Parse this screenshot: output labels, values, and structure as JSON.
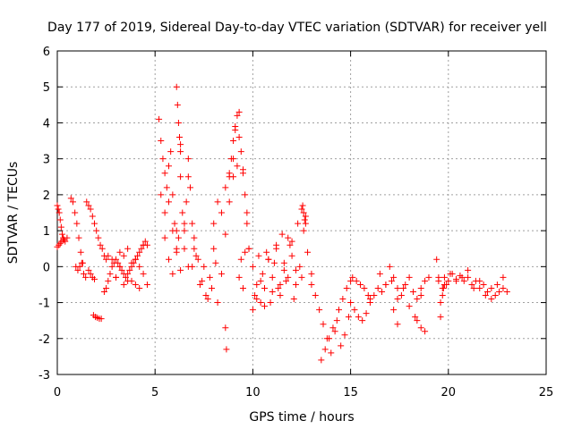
{
  "chart_data": {
    "type": "scatter",
    "title": "Day 177 of 2019, Sidereal Day-to-day VTEC variation (SDTVAR) for receiver yell",
    "xlabel": "GPS time / hours",
    "ylabel": "SDTVAR / TECUs",
    "xlim": [
      0,
      25
    ],
    "ylim": [
      -3,
      6
    ],
    "xticks": [
      "0",
      "5",
      "10",
      "15",
      "20",
      "25"
    ],
    "yticks": [
      "-3",
      "-2",
      "-1",
      "0",
      "1",
      "2",
      "3",
      "4",
      "5",
      "6"
    ],
    "grid": true,
    "marker": "+",
    "color": "#ff0000",
    "series": [
      {
        "name": "SDTVAR",
        "x": [
          0.0,
          0.05,
          0.1,
          0.15,
          0.2,
          0.25,
          0.3,
          0.35,
          0.4,
          0.5,
          0.0,
          0.08,
          0.15,
          0.22,
          0.3,
          0.7,
          0.8,
          0.9,
          1.0,
          1.1,
          1.2,
          1.3,
          0.95,
          1.05,
          1.15,
          1.25,
          1.35,
          1.45,
          1.5,
          1.6,
          1.7,
          1.8,
          1.9,
          2.0,
          2.1,
          2.2,
          2.3,
          2.4,
          2.5,
          1.6,
          1.7,
          1.8,
          1.9,
          1.85,
          1.95,
          2.05,
          2.15,
          2.25,
          2.4,
          2.5,
          2.6,
          2.7,
          2.8,
          2.9,
          3.0,
          3.1,
          3.2,
          3.3,
          3.4,
          3.5,
          3.6,
          3.7,
          3.8,
          3.9,
          4.0,
          4.1,
          4.2,
          4.3,
          4.4,
          4.5,
          4.6,
          2.6,
          2.8,
          3.0,
          3.2,
          3.4,
          3.6,
          3.8,
          4.0,
          4.2,
          4.4,
          3.0,
          3.2,
          3.4,
          3.6,
          3.8,
          4.0,
          4.2,
          4.4,
          4.6,
          5.2,
          5.3,
          5.4,
          5.5,
          5.6,
          5.7,
          5.8,
          5.9,
          6.0,
          6.1,
          6.2,
          6.3,
          6.4,
          6.5,
          6.6,
          6.7,
          6.8,
          6.9,
          7.0,
          5.3,
          5.5,
          5.7,
          5.9,
          6.1,
          6.3,
          6.5,
          6.7,
          6.9,
          5.5,
          5.7,
          5.9,
          6.1,
          6.3,
          6.5,
          6.7,
          6.1,
          6.15,
          6.2,
          6.25,
          6.3,
          7.0,
          7.2,
          7.4,
          7.6,
          7.8,
          8.0,
          8.2,
          8.4,
          8.6,
          8.8,
          9.0,
          7.1,
          7.3,
          7.5,
          7.7,
          7.9,
          8.1,
          8.0,
          8.2,
          8.4,
          8.6,
          8.8,
          9.0,
          9.2,
          8.8,
          8.9,
          9.0,
          9.1,
          9.2,
          9.3,
          9.4,
          9.5,
          9.6,
          9.7,
          9.8,
          9.1,
          9.3,
          9.5,
          9.7,
          9.3,
          9.4,
          9.5,
          9.6,
          8.6,
          8.65,
          9.8,
          10.0,
          10.2,
          10.4,
          10.6,
          10.8,
          11.0,
          11.2,
          11.4,
          11.6,
          11.8,
          12.0,
          12.2,
          12.4,
          12.6,
          12.8,
          13.0,
          10.1,
          10.3,
          10.5,
          10.7,
          10.9,
          11.1,
          11.3,
          11.5,
          11.7,
          11.9,
          12.1,
          12.3,
          12.5,
          12.7,
          10.0,
          10.2,
          10.4,
          10.6,
          10.8,
          11.0,
          11.2,
          11.4,
          11.6,
          11.8,
          12.0,
          12.2,
          12.5,
          12.55,
          12.6,
          12.65,
          12.7,
          13.0,
          13.2,
          13.4,
          13.6,
          13.8,
          14.0,
          14.2,
          14.4,
          14.6,
          14.8,
          15.0,
          13.5,
          13.7,
          13.9,
          14.1,
          14.3,
          14.5,
          14.7,
          14.9,
          15.0,
          15.2,
          15.4,
          15.6,
          15.8,
          16.0,
          15.1,
          15.3,
          15.5,
          15.7,
          15.9,
          16.0,
          16.2,
          16.4,
          16.6,
          16.8,
          17.0,
          17.2,
          17.4,
          17.6,
          17.8,
          18.0,
          18.2,
          18.4,
          18.6,
          18.8,
          19.0,
          16.5,
          16.8,
          17.1,
          17.4,
          17.7,
          18.0,
          18.3,
          18.6,
          17.2,
          17.4,
          18.4,
          18.6,
          18.8,
          19.4,
          19.5,
          19.6,
          19.7,
          19.8,
          19.9,
          20.0,
          20.2,
          20.4,
          20.6,
          20.8,
          21.0,
          21.2,
          21.4,
          21.6,
          21.8,
          22.0,
          22.2,
          22.4,
          22.6,
          22.8,
          23.0,
          19.5,
          19.8,
          20.1,
          20.4,
          20.7,
          21.0,
          21.3,
          21.6,
          21.9,
          22.2,
          22.5,
          22.8,
          19.6,
          19.7,
          19.75
        ],
        "y": [
          1.7,
          1.6,
          1.5,
          1.3,
          1.1,
          0.9,
          0.8,
          0.75,
          0.7,
          0.8,
          0.55,
          0.6,
          0.65,
          0.7,
          0.75,
          1.9,
          1.8,
          1.5,
          1.2,
          0.8,
          0.4,
          0.1,
          0.0,
          -0.1,
          0.0,
          0.1,
          -0.2,
          -0.3,
          1.8,
          1.7,
          1.6,
          1.4,
          1.2,
          1.0,
          0.8,
          0.6,
          0.5,
          0.3,
          0.2,
          -0.1,
          -0.2,
          -0.3,
          -0.35,
          -1.35,
          -1.4,
          -1.42,
          -1.45,
          -1.45,
          -0.7,
          -0.6,
          -0.4,
          -0.2,
          0.0,
          0.1,
          0.2,
          0.1,
          0.0,
          -0.1,
          -0.2,
          -0.3,
          -0.2,
          -0.1,
          0.0,
          0.1,
          0.2,
          0.3,
          0.4,
          0.5,
          0.6,
          0.7,
          0.6,
          0.3,
          0.2,
          -0.3,
          0.0,
          0.3,
          -0.4,
          0.1,
          -0.5,
          0.0,
          -0.2,
          -0.3,
          0.4,
          -0.5,
          0.5,
          -0.4,
          0.2,
          -0.6,
          0.6,
          -0.5,
          4.1,
          3.5,
          3.0,
          2.6,
          2.2,
          1.8,
          3.2,
          2.0,
          1.2,
          1.0,
          0.8,
          2.5,
          1.5,
          1.0,
          1.8,
          3.0,
          2.2,
          1.2,
          0.5,
          2.0,
          1.5,
          2.8,
          1.0,
          0.5,
          3.4,
          1.2,
          2.5,
          0.0,
          0.8,
          0.2,
          -0.2,
          0.4,
          -0.1,
          0.5,
          0.0,
          5.0,
          4.5,
          4.0,
          3.6,
          3.2,
          0.8,
          0.2,
          -0.4,
          -0.8,
          -0.3,
          0.5,
          -1.0,
          -0.2,
          0.9,
          1.8,
          2.5,
          0.3,
          -0.5,
          0.0,
          -0.9,
          -0.6,
          0.1,
          1.2,
          1.8,
          1.5,
          2.2,
          2.6,
          3.0,
          2.8,
          2.5,
          3.0,
          3.5,
          3.8,
          4.2,
          3.6,
          3.2,
          2.6,
          2.0,
          1.5,
          0.5,
          3.9,
          4.3,
          2.7,
          1.2,
          -0.3,
          0.2,
          -0.6,
          0.4,
          -1.7,
          -2.3,
          0.5,
          0.0,
          -0.5,
          -1.0,
          -0.6,
          0.2,
          -0.3,
          0.6,
          -0.8,
          -0.1,
          0.8,
          0.3,
          -0.5,
          0.0,
          1.0,
          0.4,
          -0.2,
          -0.8,
          0.3,
          -0.2,
          0.4,
          -1.0,
          0.1,
          -0.6,
          0.9,
          -0.4,
          0.6,
          -0.9,
          1.2,
          -0.3,
          1.4,
          -1.2,
          -0.9,
          -0.4,
          -1.1,
          0.2,
          -0.7,
          0.5,
          -0.5,
          0.1,
          -0.3,
          0.7,
          -0.1,
          1.6,
          1.7,
          1.5,
          1.3,
          1.2,
          -0.5,
          -0.8,
          -1.2,
          -1.6,
          -2.0,
          -2.4,
          -1.8,
          -1.2,
          -0.9,
          -0.6,
          -0.4,
          -2.6,
          -2.3,
          -2.0,
          -1.7,
          -1.5,
          -2.2,
          -1.9,
          -1.4,
          -1.0,
          -1.2,
          -1.4,
          -1.5,
          -1.3,
          -1.0,
          -0.3,
          -0.4,
          -0.5,
          -0.6,
          -0.8,
          -0.9,
          -0.8,
          -0.6,
          -0.7,
          -0.5,
          0.0,
          -0.3,
          -0.6,
          -0.8,
          -0.5,
          -0.3,
          -0.7,
          -0.9,
          -0.6,
          -0.4,
          -0.3,
          -0.2,
          -0.5,
          -0.4,
          -0.9,
          -0.6,
          -1.1,
          -1.4,
          -0.8,
          -1.2,
          -1.6,
          -1.5,
          -1.7,
          -1.8,
          0.2,
          -0.4,
          -1.0,
          -0.6,
          -0.3,
          -0.5,
          -0.4,
          -0.2,
          -0.35,
          -0.25,
          -0.4,
          -0.3,
          -0.5,
          -0.4,
          -0.6,
          -0.5,
          -0.7,
          -0.6,
          -0.8,
          -0.7,
          -0.6,
          -0.7,
          -0.3,
          -0.5,
          -0.2,
          -0.4,
          -0.3,
          -0.1,
          -0.6,
          -0.4,
          -0.8,
          -0.9,
          -0.5,
          -0.3,
          -1.4,
          -0.8,
          -0.6
        ]
      }
    ]
  }
}
